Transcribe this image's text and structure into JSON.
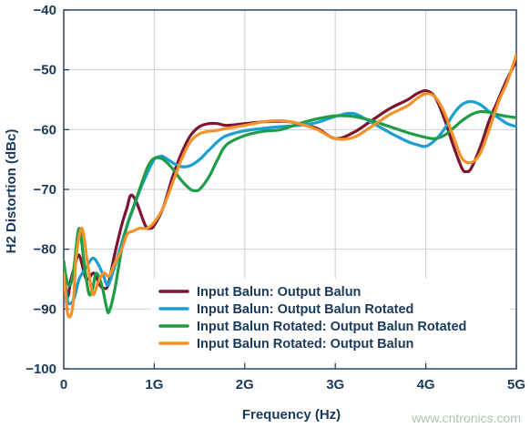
{
  "watermark": "www.cntronics.com",
  "chart_data": {
    "type": "line",
    "xlabel": "Frequency (Hz)",
    "ylabel": "H2 Distortion (dBc)",
    "xlim": [
      0,
      5000
    ],
    "ylim": [
      -100,
      -40
    ],
    "grid": true,
    "legend_position": "bottom-center",
    "x_ticks": [
      {
        "value": 0,
        "label": "0"
      },
      {
        "value": 1000,
        "label": "1G"
      },
      {
        "value": 2000,
        "label": "2G"
      },
      {
        "value": 3000,
        "label": "3G"
      },
      {
        "value": 4000,
        "label": "4G"
      },
      {
        "value": 5000,
        "label": "5G"
      }
    ],
    "y_ticks": [
      {
        "value": -40,
        "label": "−40"
      },
      {
        "value": -50,
        "label": "−50"
      },
      {
        "value": -60,
        "label": "−60"
      },
      {
        "value": -70,
        "label": "−70"
      },
      {
        "value": -80,
        "label": "−80"
      },
      {
        "value": -90,
        "label": "−90"
      },
      {
        "value": -100,
        "label": "−100"
      }
    ],
    "series": [
      {
        "name": "Input Balun: Output Balun",
        "color": "#7b1530",
        "x": [
          0,
          40,
          80,
          120,
          170,
          250,
          330,
          400,
          440,
          490,
          560,
          640,
          700,
          740,
          800,
          900,
          950,
          1000,
          1100,
          1200,
          1300,
          1400,
          1500,
          1600,
          1700,
          1800,
          2000,
          2200,
          2400,
          2500,
          2600,
          2800,
          3000,
          3200,
          3400,
          3600,
          3800,
          3900,
          4000,
          4100,
          4200,
          4300,
          4400,
          4450,
          4500,
          4600,
          4700,
          4800,
          4900,
          5000
        ],
        "y": [
          -84,
          -88,
          -85,
          -83,
          -81,
          -85,
          -84,
          -86,
          -86.5,
          -86,
          -81,
          -76,
          -73,
          -71,
          -72,
          -76,
          -76.5,
          -76,
          -73,
          -68,
          -64,
          -61,
          -59.5,
          -59,
          -59,
          -59.3,
          -59,
          -58.7,
          -58.6,
          -58.7,
          -59,
          -59.8,
          -61.5,
          -60.5,
          -58.5,
          -56.5,
          -55,
          -54,
          -53.5,
          -54.5,
          -58,
          -62.5,
          -66.5,
          -67,
          -66.5,
          -63,
          -58.5,
          -55,
          -51.5,
          -48.5
        ]
      },
      {
        "name": "Input Balun: Output Balun Rotated",
        "color": "#1a9fd0",
        "x": [
          0,
          40,
          80,
          120,
          170,
          250,
          320,
          380,
          440,
          490,
          560,
          640,
          700,
          760,
          820,
          900,
          1000,
          1060,
          1100,
          1200,
          1300,
          1400,
          1500,
          1600,
          1700,
          1800,
          2000,
          2200,
          2400,
          2600,
          2800,
          3000,
          3200,
          3400,
          3600,
          3800,
          3900,
          4000,
          4100,
          4200,
          4300,
          4400,
          4500,
          4600,
          4700,
          4800,
          4900,
          5000
        ],
        "y": [
          -83,
          -88.5,
          -89,
          -88,
          -85,
          -83,
          -81.5,
          -82.5,
          -84.5,
          -86,
          -83,
          -79,
          -76,
          -73.5,
          -71,
          -68,
          -65,
          -64.5,
          -64.5,
          -65.5,
          -66.2,
          -66,
          -65,
          -63.5,
          -62,
          -61,
          -60.2,
          -59.8,
          -59.5,
          -59.3,
          -58.8,
          -57.8,
          -57.3,
          -58.8,
          -60.5,
          -62,
          -62.5,
          -62.8,
          -61.8,
          -60,
          -57.5,
          -55.8,
          -55.3,
          -55.8,
          -57,
          -58,
          -59,
          -59.5
        ]
      },
      {
        "name": "Input Balun Rotated: Output Balun Rotated",
        "color": "#1e9c48",
        "x": [
          0,
          30,
          70,
          110,
          170,
          230,
          280,
          320,
          360,
          420,
          470,
          500,
          560,
          640,
          700,
          780,
          860,
          920,
          980,
          1040,
          1100,
          1200,
          1300,
          1400,
          1450,
          1500,
          1600,
          1700,
          1800,
          2000,
          2200,
          2400,
          2600,
          2800,
          3000,
          3200,
          3400,
          3600,
          3800,
          4000,
          4100,
          4200,
          4300,
          4400,
          4500,
          4600,
          4700,
          4800,
          4900,
          5000
        ],
        "y": [
          -82,
          -85,
          -86,
          -83.5,
          -76.5,
          -83,
          -87.5,
          -86.5,
          -84,
          -86,
          -89.5,
          -90.5,
          -87,
          -80,
          -76,
          -72.5,
          -69,
          -66.5,
          -65,
          -64.7,
          -65,
          -66.5,
          -68.5,
          -70,
          -70.2,
          -70,
          -68,
          -65,
          -62.5,
          -61,
          -60.3,
          -60,
          -59,
          -58.2,
          -57.7,
          -57.8,
          -58.5,
          -59.5,
          -60.5,
          -61.3,
          -61.5,
          -61,
          -59.8,
          -58.5,
          -57.5,
          -57,
          -57.1,
          -57.5,
          -57.8,
          -58
        ]
      },
      {
        "name": "Input Balun Rotated: Output Balun",
        "color": "#f2922a",
        "x": [
          0,
          40,
          80,
          110,
          140,
          200,
          260,
          320,
          380,
          440,
          500,
          560,
          640,
          700,
          760,
          840,
          920,
          1000,
          1100,
          1200,
          1300,
          1400,
          1500,
          1600,
          1700,
          1800,
          2000,
          2200,
          2400,
          2600,
          2800,
          3000,
          3200,
          3400,
          3600,
          3800,
          3900,
          4000,
          4100,
          4200,
          4300,
          4400,
          4500,
          4600,
          4700,
          4800,
          4900,
          5000
        ],
        "y": [
          -84,
          -90.5,
          -91,
          -88,
          -81,
          -76.5,
          -82,
          -87.5,
          -85.5,
          -84,
          -84.5,
          -82.5,
          -80,
          -77.5,
          -77,
          -76.5,
          -76.5,
          -75.5,
          -73,
          -69,
          -65,
          -62,
          -60.7,
          -60.3,
          -60.1,
          -59.8,
          -59.3,
          -58.7,
          -58.5,
          -59,
          -60,
          -61.5,
          -61.3,
          -59.5,
          -57.5,
          -56,
          -54.8,
          -54,
          -54.5,
          -57,
          -61,
          -64.8,
          -65.5,
          -64,
          -60,
          -55.5,
          -52,
          -47.5
        ]
      }
    ]
  }
}
